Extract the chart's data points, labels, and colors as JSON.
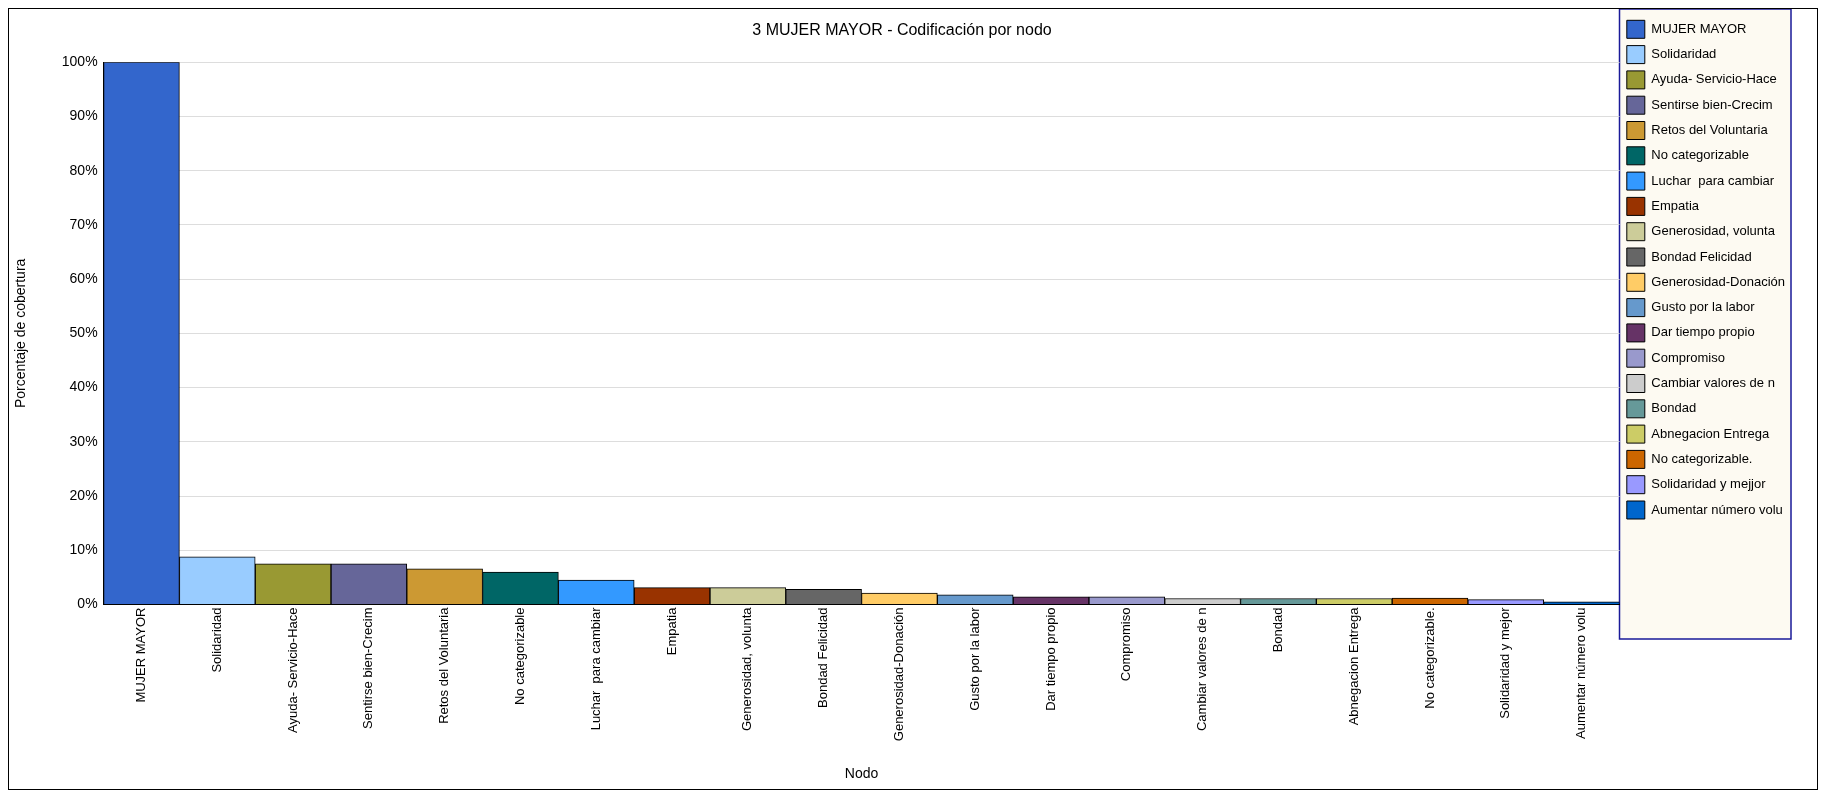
{
  "chart_data": {
    "type": "bar",
    "title": "3 MUJER MAYOR - Codificación por nodo",
    "xlabel": "Nodo",
    "ylabel": "Porcentaje de cobertura",
    "categories": [
      "MUJER MAYOR",
      "Solidaridad",
      "Ayuda- Servicio-Hace",
      "Sentirse bien-Crecim",
      "Retos del Voluntaria",
      "No categorizable",
      "Luchar  para cambiar",
      "Empatia",
      "Generosidad, volunta",
      "Bondad Felicidad",
      "Generosidad-Donación",
      "Gusto por la labor",
      "Dar tiempo propio",
      "Compromiso",
      "Cambiar valores de n",
      "Bondad",
      "Abnegacion Entrega",
      "No categorizable.",
      "Solidaridad y mejor",
      "Aumentar número volu"
    ],
    "series": [
      {
        "name": "MUJER MAYOR",
        "color": "#3366cc",
        "values": [
          100,
          null,
          null,
          null,
          null,
          null,
          null,
          null,
          null,
          null,
          null,
          null,
          null,
          null,
          null,
          null,
          null,
          null,
          null,
          null
        ]
      },
      {
        "name": "Solidaridad",
        "color": "#99ccff",
        "values": [
          null,
          8.8,
          null,
          null,
          null,
          null,
          null,
          null,
          null,
          null,
          null,
          null,
          null,
          null,
          null,
          null,
          null,
          null,
          null,
          null
        ]
      },
      {
        "name": "Ayuda- Servicio-Hace",
        "color": "#999933",
        "values": [
          null,
          null,
          7.5,
          null,
          null,
          null,
          null,
          null,
          null,
          null,
          null,
          null,
          null,
          null,
          null,
          null,
          null,
          null,
          null,
          null
        ]
      },
      {
        "name": "Sentirse bien-Crecim",
        "color": "#666699",
        "values": [
          null,
          null,
          null,
          7.5,
          null,
          null,
          null,
          null,
          null,
          null,
          null,
          null,
          null,
          null,
          null,
          null,
          null,
          null,
          null,
          null
        ]
      },
      {
        "name": "Retos del Voluntaria",
        "color": "#cc9933",
        "values": [
          null,
          null,
          null,
          null,
          6.6,
          null,
          null,
          null,
          null,
          null,
          null,
          null,
          null,
          null,
          null,
          null,
          null,
          null,
          null,
          null
        ]
      },
      {
        "name": "No categorizable",
        "color": "#006666",
        "values": [
          null,
          null,
          null,
          null,
          null,
          6.0,
          null,
          null,
          null,
          null,
          null,
          null,
          null,
          null,
          null,
          null,
          null,
          null,
          null,
          null
        ]
      },
      {
        "name": "Luchar  para cambiar",
        "color": "#3399ff",
        "values": [
          null,
          null,
          null,
          null,
          null,
          null,
          4.5,
          null,
          null,
          null,
          null,
          null,
          null,
          null,
          null,
          null,
          null,
          null,
          null,
          null
        ]
      },
      {
        "name": "Empatia",
        "color": "#993300",
        "values": [
          null,
          null,
          null,
          null,
          null,
          null,
          null,
          3.1,
          null,
          null,
          null,
          null,
          null,
          null,
          null,
          null,
          null,
          null,
          null,
          null
        ]
      },
      {
        "name": "Generosidad, volunta",
        "color": "#cccc99",
        "values": [
          null,
          null,
          null,
          null,
          null,
          null,
          null,
          null,
          3.1,
          null,
          null,
          null,
          null,
          null,
          null,
          null,
          null,
          null,
          null,
          null
        ]
      },
      {
        "name": "Bondad Felicidad",
        "color": "#666666",
        "values": [
          null,
          null,
          null,
          null,
          null,
          null,
          null,
          null,
          null,
          2.8,
          null,
          null,
          null,
          null,
          null,
          null,
          null,
          null,
          null,
          null
        ]
      },
      {
        "name": "Generosidad-Donación",
        "color": "#ffcc66",
        "values": [
          null,
          null,
          null,
          null,
          null,
          null,
          null,
          null,
          null,
          null,
          2.1,
          null,
          null,
          null,
          null,
          null,
          null,
          null,
          null,
          null
        ]
      },
      {
        "name": "Gusto por la labor",
        "color": "#6699cc",
        "values": [
          null,
          null,
          null,
          null,
          null,
          null,
          null,
          null,
          null,
          null,
          null,
          1.8,
          null,
          null,
          null,
          null,
          null,
          null,
          null,
          null
        ]
      },
      {
        "name": "Dar tiempo propio",
        "color": "#663366",
        "values": [
          null,
          null,
          null,
          null,
          null,
          null,
          null,
          null,
          null,
          null,
          null,
          null,
          1.4,
          null,
          null,
          null,
          null,
          null,
          null,
          null
        ]
      },
      {
        "name": "Compromiso",
        "color": "#9999cc",
        "values": [
          null,
          null,
          null,
          null,
          null,
          null,
          null,
          null,
          null,
          null,
          null,
          null,
          null,
          1.4,
          null,
          null,
          null,
          null,
          null,
          null
        ]
      },
      {
        "name": "Cambiar valores de n",
        "color": "#cccccc",
        "values": [
          null,
          null,
          null,
          null,
          null,
          null,
          null,
          null,
          null,
          null,
          null,
          null,
          null,
          null,
          1.1,
          null,
          null,
          null,
          null,
          null
        ]
      },
      {
        "name": "Bondad",
        "color": "#669999",
        "values": [
          null,
          null,
          null,
          null,
          null,
          null,
          null,
          null,
          null,
          null,
          null,
          null,
          null,
          null,
          null,
          1.1,
          null,
          null,
          null,
          null
        ]
      },
      {
        "name": "Abnegacion Entrega",
        "color": "#cccc66",
        "values": [
          null,
          null,
          null,
          null,
          null,
          null,
          null,
          null,
          null,
          null,
          null,
          null,
          null,
          null,
          null,
          null,
          1.1,
          null,
          null,
          null
        ]
      },
      {
        "name": "No categorizable.",
        "color": "#cc6600",
        "values": [
          null,
          null,
          null,
          null,
          null,
          null,
          null,
          null,
          null,
          null,
          null,
          null,
          null,
          null,
          null,
          null,
          null,
          1.2,
          null,
          null
        ]
      },
      {
        "name": "Solidaridad y mejjor",
        "color": "#9999ff",
        "values": [
          null,
          null,
          null,
          null,
          null,
          null,
          null,
          null,
          null,
          null,
          null,
          null,
          null,
          null,
          null,
          null,
          null,
          null,
          0.9,
          null
        ]
      },
      {
        "name": "Aumentar número volu",
        "color": "#0066cc",
        "values": [
          null,
          null,
          null,
          null,
          null,
          null,
          null,
          null,
          null,
          null,
          null,
          null,
          null,
          null,
          null,
          null,
          null,
          null,
          null,
          0.5
        ]
      }
    ],
    "ylim": [
      0,
      100
    ],
    "yticks": [
      {
        "value": 0,
        "label": "0%"
      },
      {
        "value": 10,
        "label": "10%"
      },
      {
        "value": 20,
        "label": "20%"
      },
      {
        "value": 30,
        "label": "30%"
      },
      {
        "value": 40,
        "label": "40%"
      },
      {
        "value": 50,
        "label": "50%"
      },
      {
        "value": 60,
        "label": "60%"
      },
      {
        "value": 70,
        "label": "70%"
      },
      {
        "value": 80,
        "label": "80%"
      },
      {
        "value": 90,
        "label": "90%"
      },
      {
        "value": 100,
        "label": "100%"
      }
    ],
    "grid": "y",
    "legend": "right"
  }
}
